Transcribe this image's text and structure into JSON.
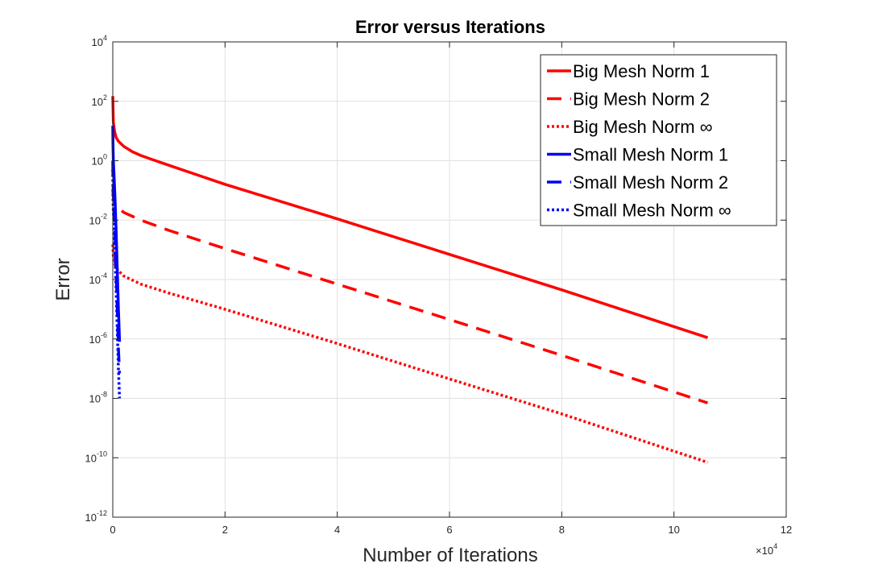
{
  "chart_data": {
    "type": "line",
    "title": "Error versus Iterations",
    "xlabel": "Number of Iterations",
    "ylabel": "Error",
    "x_multiplier": {
      "base": "×10",
      "exponent": "4"
    },
    "xlim": [
      0,
      120000
    ],
    "ylim": [
      1e-12,
      10000
    ],
    "y_scale": "log",
    "grid": true,
    "legend_position": "top-right",
    "x_ticks": [
      {
        "value": 0,
        "label": "0"
      },
      {
        "value": 20000,
        "label": "2"
      },
      {
        "value": 40000,
        "label": "4"
      },
      {
        "value": 60000,
        "label": "6"
      },
      {
        "value": 80000,
        "label": "8"
      },
      {
        "value": 100000,
        "label": "10"
      },
      {
        "value": 120000,
        "label": "12"
      }
    ],
    "y_ticks": [
      {
        "value": 1e-12,
        "base": "10",
        "exp": "-12"
      },
      {
        "value": 1e-10,
        "base": "10",
        "exp": "-10"
      },
      {
        "value": 1e-08,
        "base": "10",
        "exp": "-8"
      },
      {
        "value": 1e-06,
        "base": "10",
        "exp": "-6"
      },
      {
        "value": 0.0001,
        "base": "10",
        "exp": "-4"
      },
      {
        "value": 0.01,
        "base": "10",
        "exp": "-2"
      },
      {
        "value": 1,
        "base": "10",
        "exp": "0"
      },
      {
        "value": 100,
        "base": "10",
        "exp": "2"
      },
      {
        "value": 10000,
        "base": "10",
        "exp": "4"
      }
    ],
    "series": [
      {
        "name": "Big Mesh Norm 1",
        "color": "#ff0000",
        "style": "solid",
        "x": [
          0,
          100,
          300,
          600,
          1000,
          2000,
          3500,
          5000,
          7000,
          10000,
          20000,
          40000,
          60000,
          80000,
          106000
        ],
        "y": [
          150,
          20,
          10,
          6,
          4.5,
          3,
          2,
          1.5,
          1.1,
          0.7,
          0.16,
          0.011,
          0.0007,
          4.5e-05,
          1.1e-06
        ]
      },
      {
        "name": "Big Mesh Norm 2",
        "color": "#ff0000",
        "style": "dashed",
        "x": [
          0,
          100,
          300,
          600,
          1000,
          2000,
          5000,
          10000,
          20000,
          40000,
          60000,
          80000,
          106000
        ],
        "y": [
          0.1,
          0.06,
          0.04,
          0.03,
          0.025,
          0.018,
          0.01,
          0.0045,
          0.0011,
          7e-05,
          4.5e-06,
          2.8e-07,
          7e-09
        ]
      },
      {
        "name": "Big Mesh Norm ∞",
        "color": "#ff0000",
        "style": "dotted",
        "x": [
          0,
          100,
          300,
          600,
          1000,
          2000,
          5000,
          10000,
          20000,
          40000,
          60000,
          80000,
          106000
        ],
        "y": [
          0.0015,
          0.0006,
          0.00035,
          0.00025,
          0.0002,
          0.00013,
          7e-05,
          3.5e-05,
          1e-05,
          7e-07,
          4.5e-08,
          3e-09,
          7e-11
        ]
      },
      {
        "name": "Small Mesh Norm 1",
        "color": "#0000ff",
        "style": "solid",
        "x": [
          0,
          50,
          100,
          200,
          400,
          600,
          800,
          1000,
          1200
        ],
        "y": [
          15,
          3,
          1,
          0.4,
          0.05,
          0.004,
          0.0002,
          1e-05,
          8e-07
        ]
      },
      {
        "name": "Small Mesh Norm 2",
        "color": "#0000ff",
        "style": "dashed",
        "x": [
          0,
          50,
          100,
          200,
          400,
          600,
          800,
          1000,
          1200
        ],
        "y": [
          1,
          0.2,
          0.08,
          0.03,
          0.003,
          0.0002,
          1e-05,
          5e-07,
          7e-08
        ]
      },
      {
        "name": "Small Mesh Norm ∞",
        "color": "#0000ff",
        "style": "dotted",
        "x": [
          0,
          50,
          100,
          200,
          400,
          600,
          800,
          1000,
          1200
        ],
        "y": [
          0.5,
          0.05,
          0.02,
          0.008,
          0.0007,
          4e-05,
          2e-06,
          1e-07,
          1e-08
        ]
      }
    ]
  }
}
